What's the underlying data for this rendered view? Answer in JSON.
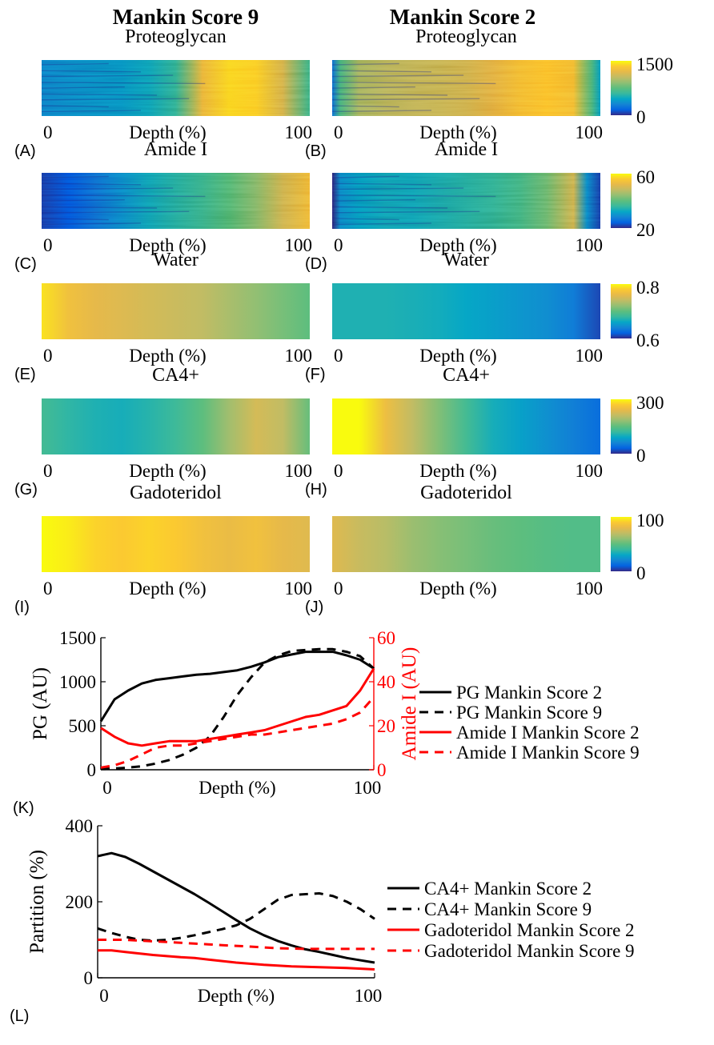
{
  "figure": {
    "columns": [
      {
        "title": "Mankin Score 9"
      },
      {
        "title": "Mankin Score 2"
      }
    ],
    "depth_label": "Depth (%)",
    "depth_ticks": [
      "0",
      "100"
    ]
  },
  "chart_data": [
    {
      "type": "heatmap",
      "panel": "(A)",
      "title": "Proteoglycan",
      "column": "Mankin Score 9",
      "x": [
        0,
        10,
        20,
        30,
        40,
        50,
        60,
        70,
        80,
        90,
        100
      ],
      "xlabel": "Depth (%)",
      "xlim": [
        0,
        100
      ],
      "values": [
        350,
        380,
        400,
        420,
        480,
        600,
        1250,
        1400,
        1380,
        1150,
        650
      ],
      "clim": [
        0,
        1500
      ],
      "colormap": "parula",
      "textured": true
    },
    {
      "type": "heatmap",
      "panel": "(B)",
      "title": "Proteoglycan",
      "column": "Mankin Score 2",
      "x": [
        0,
        3,
        10,
        20,
        30,
        40,
        50,
        60,
        70,
        80,
        90,
        97,
        100
      ],
      "xlabel": "Depth (%)",
      "xlim": [
        0,
        100
      ],
      "values": [
        250,
        700,
        1000,
        1050,
        1080,
        1100,
        1130,
        1200,
        1300,
        1350,
        1300,
        700,
        450
      ],
      "clim": [
        0,
        1500
      ],
      "colormap": "parula",
      "textured": true,
      "colorbar_ticks": [
        "1500",
        "0"
      ]
    },
    {
      "type": "heatmap",
      "panel": "(C)",
      "title": "Amide I",
      "column": "Mankin Score 9",
      "x": [
        0,
        10,
        20,
        30,
        40,
        50,
        60,
        70,
        80,
        90,
        100
      ],
      "xlabel": "Depth (%)",
      "xlim": [
        0,
        100
      ],
      "values": [
        22,
        24,
        27,
        30,
        33,
        35,
        37,
        40,
        44,
        50,
        54
      ],
      "clim": [
        20,
        60
      ],
      "colormap": "parula",
      "textured": true
    },
    {
      "type": "heatmap",
      "panel": "(D)",
      "title": "Amide I",
      "column": "Mankin Score 2",
      "x": [
        0,
        3,
        10,
        20,
        30,
        40,
        50,
        60,
        70,
        80,
        90,
        95,
        100
      ],
      "xlabel": "Depth (%)",
      "xlim": [
        0,
        100
      ],
      "values": [
        20,
        30,
        32,
        33,
        33,
        34,
        35,
        36,
        38,
        42,
        50,
        30,
        22
      ],
      "clim": [
        20,
        60
      ],
      "colormap": "parula",
      "textured": true,
      "colorbar_ticks": [
        "60",
        "20"
      ]
    },
    {
      "type": "heatmap",
      "panel": "(E)",
      "title": "Water",
      "column": "Mankin Score 9",
      "x": [
        0,
        10,
        20,
        30,
        40,
        50,
        60,
        70,
        80,
        90,
        100
      ],
      "xlabel": "Depth (%)",
      "xlim": [
        0,
        100
      ],
      "values": [
        0.79,
        0.77,
        0.76,
        0.755,
        0.75,
        0.745,
        0.74,
        0.73,
        0.72,
        0.71,
        0.7
      ],
      "clim": [
        0.6,
        0.8
      ],
      "colormap": "parula"
    },
    {
      "type": "heatmap",
      "panel": "(F)",
      "title": "Water",
      "column": "Mankin Score 2",
      "x": [
        0,
        10,
        20,
        30,
        40,
        50,
        60,
        70,
        80,
        90,
        100
      ],
      "xlabel": "Depth (%)",
      "xlim": [
        0,
        100
      ],
      "values": [
        0.67,
        0.67,
        0.67,
        0.668,
        0.665,
        0.66,
        0.655,
        0.65,
        0.645,
        0.635,
        0.61
      ],
      "clim": [
        0.6,
        0.8
      ],
      "colormap": "parula",
      "colorbar_ticks": [
        "0.8",
        "0.6"
      ]
    },
    {
      "type": "heatmap",
      "panel": "(G)",
      "title": "CA4+",
      "column": "Mankin Score 9",
      "x": [
        0,
        10,
        20,
        30,
        40,
        50,
        60,
        70,
        80,
        90,
        100
      ],
      "xlabel": "Depth (%)",
      "xlim": [
        0,
        100
      ],
      "values": [
        130,
        115,
        105,
        100,
        110,
        125,
        150,
        190,
        225,
        210,
        155
      ],
      "clim": [
        0,
        300
      ],
      "colormap": "parula"
    },
    {
      "type": "heatmap",
      "panel": "(H)",
      "title": "CA4+",
      "column": "Mankin Score 2",
      "x": [
        0,
        10,
        20,
        30,
        40,
        50,
        60,
        70,
        80,
        90,
        100
      ],
      "xlabel": "Depth (%)",
      "xlim": [
        0,
        100
      ],
      "values": [
        320,
        300,
        250,
        210,
        170,
        130,
        100,
        85,
        70,
        55,
        40
      ],
      "clim": [
        0,
        300
      ],
      "colormap": "parula",
      "colorbar_ticks": [
        "300",
        "0"
      ]
    },
    {
      "type": "heatmap",
      "panel": "(I)",
      "title": "Gadoteridol",
      "column": "Mankin Score 9",
      "x": [
        0,
        10,
        20,
        30,
        40,
        50,
        60,
        70,
        80,
        90,
        100
      ],
      "xlabel": "Depth (%)",
      "xlim": [
        0,
        100
      ],
      "values": [
        100,
        97,
        92,
        90,
        92,
        90,
        85,
        82,
        85,
        80,
        78
      ],
      "clim": [
        0,
        100
      ],
      "colormap": "parula"
    },
    {
      "type": "heatmap",
      "panel": "(J)",
      "title": "Gadoteridol",
      "column": "Mankin Score 2",
      "x": [
        0,
        10,
        20,
        30,
        40,
        50,
        60,
        70,
        80,
        90,
        100
      ],
      "xlabel": "Depth (%)",
      "xlim": [
        0,
        100
      ],
      "values": [
        78,
        72,
        68,
        62,
        58,
        55,
        52,
        50,
        48,
        47,
        47
      ],
      "clim": [
        0,
        100
      ],
      "colormap": "parula",
      "colorbar_ticks": [
        "100",
        "0"
      ]
    },
    {
      "type": "line",
      "panel": "(K)",
      "xlabel": "Depth (%)",
      "xlim": [
        0,
        100
      ],
      "xticks": [
        0,
        100
      ],
      "ylabel": "PG (AU)",
      "ylim": [
        0,
        1500
      ],
      "yticks": [
        0,
        500,
        1000,
        1500
      ],
      "y2label": "Amide I (AU)",
      "y2lim": [
        0,
        60
      ],
      "y2ticks": [
        0,
        20,
        40,
        60
      ],
      "legend": "right",
      "x": [
        0,
        5,
        10,
        15,
        20,
        25,
        30,
        35,
        40,
        45,
        50,
        55,
        60,
        65,
        70,
        75,
        80,
        85,
        90,
        95,
        100
      ],
      "series": [
        {
          "name": "PG Mankin Score 2",
          "axis": "left",
          "color": "#000000",
          "dash": "solid",
          "values": [
            550,
            800,
            900,
            980,
            1020,
            1040,
            1060,
            1080,
            1090,
            1110,
            1130,
            1170,
            1220,
            1280,
            1310,
            1340,
            1340,
            1340,
            1300,
            1250,
            1150
          ]
        },
        {
          "name": "PG Mankin Score 9",
          "axis": "left",
          "color": "#000000",
          "dash": "dashed",
          "values": [
            10,
            15,
            25,
            40,
            70,
            110,
            170,
            250,
            380,
            600,
            850,
            1050,
            1220,
            1300,
            1350,
            1360,
            1370,
            1370,
            1340,
            1290,
            1150
          ]
        },
        {
          "name": "Amide I Mankin Score 2",
          "axis": "right",
          "color": "#ff0000",
          "dash": "solid",
          "values": [
            19,
            15,
            12,
            11,
            12,
            13,
            13,
            13,
            14,
            15,
            16,
            17,
            18,
            20,
            22,
            24,
            25,
            27,
            29,
            36,
            46
          ]
        },
        {
          "name": "Amide I Mankin Score 9",
          "axis": "right",
          "color": "#ff0000",
          "dash": "dashed",
          "values": [
            1,
            2,
            4,
            7,
            10,
            11,
            11,
            12,
            13,
            14,
            15,
            16,
            16,
            17,
            18,
            19,
            20,
            21,
            23,
            26,
            33
          ]
        }
      ]
    },
    {
      "type": "line",
      "panel": "(L)",
      "xlabel": "Depth (%)",
      "xlim": [
        0,
        100
      ],
      "xticks": [
        0,
        100
      ],
      "ylabel": "Partition (%)",
      "ylim": [
        0,
        400
      ],
      "yticks": [
        0,
        200,
        400
      ],
      "legend": "right",
      "x": [
        0,
        5,
        10,
        15,
        20,
        25,
        30,
        35,
        40,
        45,
        50,
        55,
        60,
        65,
        70,
        75,
        80,
        85,
        90,
        95,
        100
      ],
      "series": [
        {
          "name": "CA4+ Mankin Score 2",
          "color": "#000000",
          "dash": "solid",
          "values": [
            320,
            328,
            318,
            300,
            280,
            260,
            240,
            220,
            198,
            175,
            152,
            130,
            112,
            97,
            85,
            75,
            68,
            60,
            52,
            46,
            40
          ]
        },
        {
          "name": "CA4+ Mankin Score 9",
          "color": "#000000",
          "dash": "dashed",
          "values": [
            130,
            118,
            108,
            100,
            98,
            100,
            105,
            112,
            120,
            128,
            138,
            155,
            180,
            205,
            218,
            220,
            222,
            215,
            200,
            180,
            155
          ]
        },
        {
          "name": "Gadoteridol Mankin Score 2",
          "color": "#ff0000",
          "dash": "solid",
          "values": [
            72,
            72,
            68,
            64,
            60,
            57,
            54,
            52,
            48,
            44,
            40,
            37,
            34,
            32,
            30,
            29,
            28,
            27,
            26,
            24,
            22
          ]
        },
        {
          "name": "Gadoteridol Mankin Score 9",
          "color": "#ff0000",
          "dash": "dashed",
          "values": [
            100,
            100,
            100,
            98,
            96,
            94,
            92,
            90,
            88,
            86,
            84,
            82,
            80,
            78,
            77,
            76,
            76,
            76,
            76,
            76,
            76
          ]
        }
      ]
    }
  ]
}
